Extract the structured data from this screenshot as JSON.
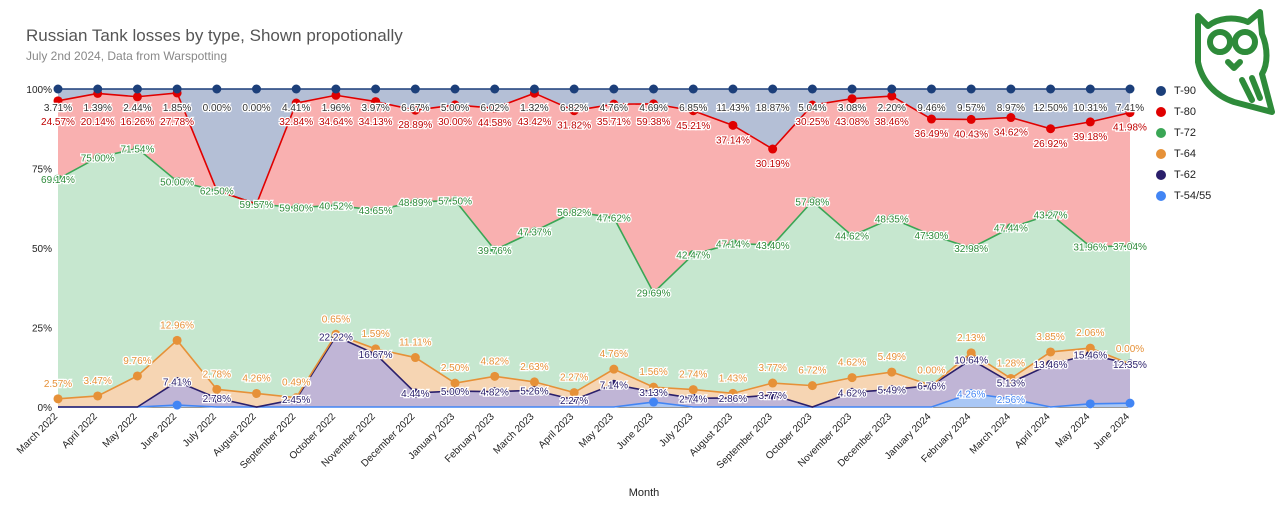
{
  "title": "Russian Tank losses by type, Shown propotionally",
  "subtitle": "July 2nd 2024, Data from Warspotting",
  "logo": {
    "icon": "owl-logo-icon",
    "color": "#2e8b3a"
  },
  "chart_data": {
    "type": "area",
    "stacked": true,
    "percent_stacked": true,
    "xlabel": "Month",
    "ylabel": "",
    "ylim": [
      0,
      100
    ],
    "y_ticks": [
      "0%",
      "25%",
      "50%",
      "75%",
      "100%"
    ],
    "grid": true,
    "legend_position": "right",
    "categories": [
      "March 2022",
      "April 2022",
      "May 2022",
      "June 2022",
      "July 2022",
      "August 2022",
      "September 2022",
      "October 2022",
      "November 2022",
      "December 2022",
      "January 2023",
      "February 2023",
      "March 2023",
      "April 2023",
      "May 2023",
      "June 2023",
      "July 2023",
      "August 2023",
      "September 2023",
      "October 2023",
      "November 2023",
      "December 2023",
      "January 2024",
      "February 2024",
      "March 2024",
      "April 2024",
      "May 2024",
      "June 2024"
    ],
    "series": [
      {
        "name": "T-54/55",
        "color": "#4285f4",
        "values": [
          0,
          0,
          0,
          0.6,
          0,
          0,
          0,
          0,
          0,
          0,
          0,
          0,
          0,
          0,
          0,
          1.56,
          0,
          0,
          0,
          0,
          0,
          0,
          0,
          4.26,
          2.56,
          0,
          1.0,
          1.2
        ],
        "labels": [
          "",
          "",
          "",
          "",
          "",
          "",
          "",
          "",
          "",
          "",
          "",
          "",
          "",
          "",
          "",
          "",
          "",
          "",
          "",
          "",
          "",
          "",
          "",
          "4.26%",
          "2.56%",
          "",
          "",
          ""
        ]
      },
      {
        "name": "T-62",
        "color": "#2a1f6b",
        "values": [
          0,
          0,
          0,
          7.41,
          2.78,
          0,
          2.45,
          22.22,
          16.67,
          4.44,
          5.0,
          4.82,
          5.26,
          2.27,
          7.14,
          3.13,
          2.74,
          2.86,
          3.77,
          0,
          4.62,
          5.49,
          6.76,
          10.64,
          5.13,
          13.46,
          15.46,
          12.35
        ],
        "labels": [
          "",
          "",
          "",
          "7.41%",
          "2.78%",
          "",
          "2.45%",
          "22.22%",
          "16.67%",
          "4.44%",
          "5.00%",
          "4.82%",
          "5.26%",
          "2.27%",
          "7.14%",
          "3.13%",
          "2.74%",
          "2.86%",
          "3.77%",
          "",
          "4.62%",
          "5.49%",
          "6.76%",
          "10.64%",
          "5.13%",
          "13.46%",
          "15.46%",
          "12.35%"
        ]
      },
      {
        "name": "T-64",
        "color": "#e69138",
        "values": [
          2.57,
          3.47,
          9.76,
          12.96,
          2.78,
          4.26,
          0.49,
          0.65,
          1.59,
          11.11,
          2.5,
          4.82,
          2.63,
          2.27,
          4.76,
          1.56,
          2.74,
          1.43,
          3.77,
          6.72,
          4.62,
          5.49,
          0,
          2.13,
          1.28,
          3.85,
          2.06,
          0
        ],
        "labels": [
          "2.57%",
          "3.47%",
          "9.76%",
          "12.96%",
          "2.78%",
          "4.26%",
          "0.49%",
          "0.65%",
          "1.59%",
          "11.11%",
          "2.50%",
          "4.82%",
          "2.63%",
          "2.27%",
          "4.76%",
          "1.56%",
          "2.74%",
          "1.43%",
          "3.77%",
          "6.72%",
          "4.62%",
          "5.49%",
          "0.00%",
          "2.13%",
          "1.28%",
          "3.85%",
          "2.06%",
          "0.00%"
        ]
      },
      {
        "name": "T-72",
        "color": "#3aa655",
        "values": [
          69.14,
          75.0,
          71.54,
          50.0,
          62.5,
          59.57,
          59.8,
          40.52,
          43.65,
          48.89,
          57.5,
          39.76,
          47.37,
          56.82,
          47.62,
          29.69,
          42.47,
          47.14,
          43.4,
          57.98,
          44.62,
          48.35,
          47.3,
          32.98,
          47.44,
          43.27,
          31.96,
          37.04
        ],
        "labels": [
          "69.14%",
          "75.00%",
          "71.54%",
          "50.00%",
          "62.50%",
          "59.57%",
          "59.80%",
          "40.52%",
          "43.65%",
          "48.89%",
          "57.50%",
          "39.76%",
          "47.37%",
          "56.82%",
          "47.62%",
          "29.69%",
          "42.47%",
          "47.14%",
          "43.40%",
          "57.98%",
          "44.62%",
          "48.35%",
          "47.30%",
          "32.98%",
          "47.44%",
          "43.27%",
          "31.96%",
          "37.04%"
        ]
      },
      {
        "name": "T-80",
        "color": "#e00000",
        "values": [
          24.57,
          20.14,
          16.26,
          27.78,
          0,
          0,
          32.84,
          34.64,
          34.13,
          28.89,
          30.0,
          44.58,
          43.42,
          31.82,
          35.71,
          59.38,
          45.21,
          37.14,
          30.19,
          30.25,
          43.08,
          38.46,
          36.49,
          40.43,
          34.62,
          26.92,
          39.18,
          41.98
        ],
        "labels": [
          "24.57%",
          "20.14%",
          "16.26%",
          "27.78%",
          "",
          "",
          "32.84%",
          "34.64%",
          "34.13%",
          "28.89%",
          "30.00%",
          "44.58%",
          "43.42%",
          "31.82%",
          "35.71%",
          "59.38%",
          "45.21%",
          "37.14%",
          "30.19%",
          "30.25%",
          "43.08%",
          "38.46%",
          "36.49%",
          "40.43%",
          "34.62%",
          "26.92%",
          "39.18%",
          "41.98%"
        ]
      },
      {
        "name": "T-90",
        "color": "#1c3f7a",
        "values": [
          3.71,
          1.39,
          2.44,
          1.85,
          0,
          0,
          4.41,
          1.96,
          3.97,
          6.67,
          5.0,
          6.02,
          1.32,
          6.82,
          4.76,
          4.69,
          6.85,
          11.43,
          18.87,
          5.04,
          3.08,
          2.2,
          9.46,
          9.57,
          8.97,
          12.5,
          10.31,
          7.41
        ],
        "labels": [
          "3.71%",
          "1.39%",
          "2.44%",
          "1.85%",
          "0.00%",
          "0.00%",
          "4.41%",
          "1.96%",
          "3.97%",
          "6.67%",
          "5.00%",
          "6.02%",
          "1.32%",
          "6.82%",
          "4.76%",
          "4.69%",
          "6.85%",
          "11.43%",
          "18.87%",
          "5.04%",
          "3.08%",
          "2.20%",
          "9.46%",
          "9.57%",
          "8.97%",
          "12.50%",
          "10.31%",
          "7.41%"
        ]
      }
    ],
    "legend_order": [
      "T-90",
      "T-80",
      "T-72",
      "T-64",
      "T-62",
      "T-54/55"
    ]
  }
}
